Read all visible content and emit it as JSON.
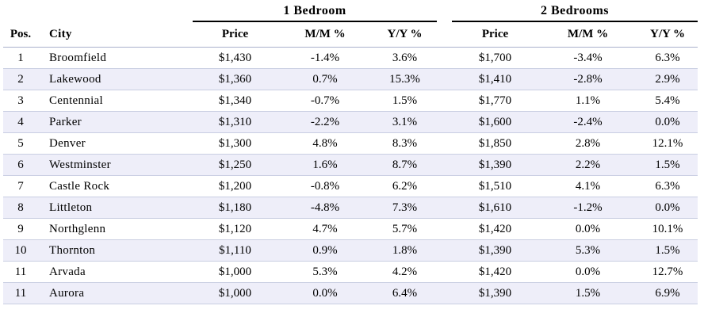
{
  "table": {
    "groups": [
      "1 Bedroom",
      "2 Bedrooms"
    ],
    "columns": [
      "Pos.",
      "City",
      "Price",
      "M/M %",
      "Y/Y %",
      "Price",
      "M/M %",
      "Y/Y %"
    ],
    "rows": [
      [
        "1",
        "Broomfield",
        "$1,430",
        "-1.4%",
        "3.6%",
        "$1,700",
        "-3.4%",
        "6.3%"
      ],
      [
        "2",
        "Lakewood",
        "$1,360",
        "0.7%",
        "15.3%",
        "$1,410",
        "-2.8%",
        "2.9%"
      ],
      [
        "3",
        "Centennial",
        "$1,340",
        "-0.7%",
        "1.5%",
        "$1,770",
        "1.1%",
        "5.4%"
      ],
      [
        "4",
        "Parker",
        "$1,310",
        "-2.2%",
        "3.1%",
        "$1,600",
        "-2.4%",
        "0.0%"
      ],
      [
        "5",
        "Denver",
        "$1,300",
        "4.8%",
        "8.3%",
        "$1,850",
        "2.8%",
        "12.1%"
      ],
      [
        "6",
        "Westminster",
        "$1,250",
        "1.6%",
        "8.7%",
        "$1,390",
        "2.2%",
        "1.5%"
      ],
      [
        "7",
        "Castle Rock",
        "$1,200",
        "-0.8%",
        "6.2%",
        "$1,510",
        "4.1%",
        "6.3%"
      ],
      [
        "8",
        "Littleton",
        "$1,180",
        "-4.8%",
        "7.3%",
        "$1,610",
        "-1.2%",
        "0.0%"
      ],
      [
        "9",
        "Northglenn",
        "$1,120",
        "4.7%",
        "5.7%",
        "$1,420",
        "0.0%",
        "10.1%"
      ],
      [
        "10",
        "Thornton",
        "$1,110",
        "0.9%",
        "1.8%",
        "$1,390",
        "5.3%",
        "1.5%"
      ],
      [
        "11",
        "Arvada",
        "$1,000",
        "5.3%",
        "4.2%",
        "$1,420",
        "0.0%",
        "12.7%"
      ],
      [
        "11",
        "Aurora",
        "$1,000",
        "0.0%",
        "6.4%",
        "$1,390",
        "1.5%",
        "6.9%"
      ]
    ]
  }
}
